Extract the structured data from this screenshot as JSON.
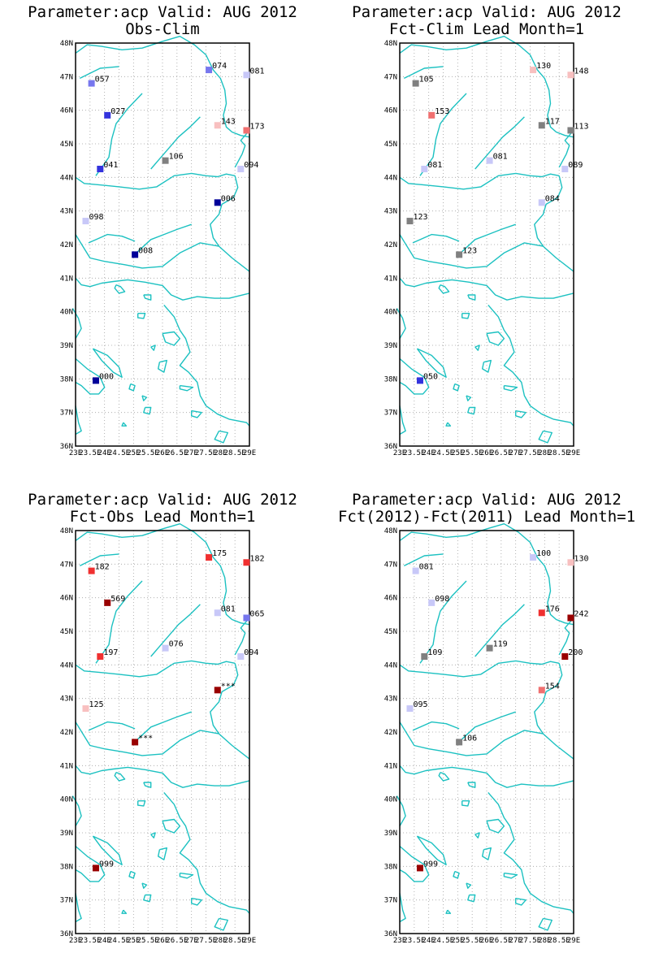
{
  "chart_data": [
    {
      "type": "scatter",
      "title_line1": "Parameter:acp Valid: AUG 2012",
      "title_line2": "Obs-Clim",
      "xlim": [
        23,
        29
      ],
      "ylim": [
        36,
        48
      ],
      "x_ticks": [
        "23E",
        "23.5E",
        "24E",
        "24.5E",
        "25E",
        "25.5E",
        "26E",
        "26.5E",
        "27E",
        "27.5E",
        "28E",
        "28.5E",
        "29E"
      ],
      "y_ticks": [
        "36N",
        "37N",
        "38N",
        "39N",
        "40N",
        "41N",
        "42N",
        "43N",
        "44N",
        "45N",
        "46N",
        "47N",
        "48N"
      ],
      "stations": [
        {
          "lon": 23.55,
          "lat": 46.8,
          "label": "057",
          "color": "#7777ee"
        },
        {
          "lon": 24.1,
          "lat": 45.85,
          "label": "027",
          "color": "#3333dd"
        },
        {
          "lon": 23.85,
          "lat": 44.25,
          "label": "041",
          "color": "#3333dd"
        },
        {
          "lon": 23.35,
          "lat": 42.7,
          "label": "098",
          "color": "#c8c8f8"
        },
        {
          "lon": 25.05,
          "lat": 41.7,
          "label": "008",
          "color": "#000099"
        },
        {
          "lon": 23.7,
          "lat": 37.95,
          "label": "000",
          "color": "#000099"
        },
        {
          "lon": 26.1,
          "lat": 44.5,
          "label": "106",
          "color": "#808080"
        },
        {
          "lon": 27.6,
          "lat": 47.2,
          "label": "074",
          "color": "#7777ee"
        },
        {
          "lon": 28.9,
          "lat": 47.05,
          "label": "081",
          "color": "#c8c8f8"
        },
        {
          "lon": 27.9,
          "lat": 45.55,
          "label": "143",
          "color": "#f8c0c0"
        },
        {
          "lon": 28.9,
          "lat": 45.4,
          "label": "173",
          "color": "#f07070"
        },
        {
          "lon": 28.7,
          "lat": 44.25,
          "label": "094",
          "color": "#c8c8f8"
        },
        {
          "lon": 27.9,
          "lat": 43.25,
          "label": "006",
          "color": "#000099"
        }
      ]
    },
    {
      "type": "scatter",
      "title_line1": "Parameter:acp Valid: AUG 2012",
      "title_line2": "Fct-Clim Lead Month=1",
      "xlim": [
        23,
        29
      ],
      "ylim": [
        36,
        48
      ],
      "x_ticks": [
        "23E",
        "23.5E",
        "24E",
        "24.5E",
        "25E",
        "25.5E",
        "26E",
        "26.5E",
        "27E",
        "27.5E",
        "28E",
        "28.5E",
        "29E"
      ],
      "y_ticks": [
        "36N",
        "37N",
        "38N",
        "39N",
        "40N",
        "41N",
        "42N",
        "43N",
        "44N",
        "45N",
        "46N",
        "47N",
        "48N"
      ],
      "stations": [
        {
          "lon": 23.55,
          "lat": 46.8,
          "label": "105",
          "color": "#808080"
        },
        {
          "lon": 24.1,
          "lat": 45.85,
          "label": "153",
          "color": "#f07070"
        },
        {
          "lon": 23.85,
          "lat": 44.25,
          "label": "081",
          "color": "#c8c8f8"
        },
        {
          "lon": 23.35,
          "lat": 42.7,
          "label": "123",
          "color": "#808080"
        },
        {
          "lon": 25.05,
          "lat": 41.7,
          "label": "123",
          "color": "#808080"
        },
        {
          "lon": 23.7,
          "lat": 37.95,
          "label": "050",
          "color": "#3333dd"
        },
        {
          "lon": 26.1,
          "lat": 44.5,
          "label": "081",
          "color": "#c8c8f8"
        },
        {
          "lon": 27.6,
          "lat": 47.2,
          "label": "130",
          "color": "#f8c0c0"
        },
        {
          "lon": 28.9,
          "lat": 47.05,
          "label": "148",
          "color": "#f8c0c0"
        },
        {
          "lon": 27.9,
          "lat": 45.55,
          "label": "117",
          "color": "#808080"
        },
        {
          "lon": 28.9,
          "lat": 45.4,
          "label": "113",
          "color": "#808080"
        },
        {
          "lon": 28.7,
          "lat": 44.25,
          "label": "089",
          "color": "#c8c8f8"
        },
        {
          "lon": 27.9,
          "lat": 43.25,
          "label": "084",
          "color": "#c8c8f8"
        }
      ]
    },
    {
      "type": "scatter",
      "title_line1": "Parameter:acp Valid: AUG 2012",
      "title_line2": "Fct-Obs Lead Month=1",
      "xlim": [
        23,
        29
      ],
      "ylim": [
        36,
        48
      ],
      "x_ticks": [
        "23E",
        "23.5E",
        "24E",
        "24.5E",
        "25E",
        "25.5E",
        "26E",
        "26.5E",
        "27E",
        "27.5E",
        "28E",
        "28.5E",
        "29E"
      ],
      "y_ticks": [
        "36N",
        "37N",
        "38N",
        "39N",
        "40N",
        "41N",
        "42N",
        "43N",
        "44N",
        "45N",
        "46N",
        "47N",
        "48N"
      ],
      "stations": [
        {
          "lon": 23.55,
          "lat": 46.8,
          "label": "182",
          "color": "#f03030"
        },
        {
          "lon": 24.1,
          "lat": 45.85,
          "label": "569",
          "color": "#990000"
        },
        {
          "lon": 23.85,
          "lat": 44.25,
          "label": "197",
          "color": "#f03030"
        },
        {
          "lon": 23.35,
          "lat": 42.7,
          "label": "125",
          "color": "#f8c0c0"
        },
        {
          "lon": 25.05,
          "lat": 41.7,
          "label": "***",
          "color": "#990000"
        },
        {
          "lon": 23.7,
          "lat": 37.95,
          "label": "999",
          "color": "#990000"
        },
        {
          "lon": 26.1,
          "lat": 44.5,
          "label": "076",
          "color": "#c8c8f8"
        },
        {
          "lon": 27.6,
          "lat": 47.2,
          "label": "175",
          "color": "#f03030"
        },
        {
          "lon": 28.9,
          "lat": 47.05,
          "label": "182",
          "color": "#f03030"
        },
        {
          "lon": 27.9,
          "lat": 45.55,
          "label": "081",
          "color": "#c8c8f8"
        },
        {
          "lon": 28.9,
          "lat": 45.4,
          "label": "065",
          "color": "#7777ee"
        },
        {
          "lon": 28.7,
          "lat": 44.25,
          "label": "094",
          "color": "#c8c8f8"
        },
        {
          "lon": 27.9,
          "lat": 43.25,
          "label": "***",
          "color": "#990000"
        }
      ]
    },
    {
      "type": "scatter",
      "title_line1": "Parameter:acp Valid: AUG 2012",
      "title_line2": "Fct(2012)-Fct(2011) Lead Month=1",
      "xlim": [
        23,
        29
      ],
      "ylim": [
        36,
        48
      ],
      "x_ticks": [
        "23E",
        "23.5E",
        "24E",
        "24.5E",
        "25E",
        "25.5E",
        "26E",
        "26.5E",
        "27E",
        "27.5E",
        "28E",
        "28.5E",
        "29E"
      ],
      "y_ticks": [
        "36N",
        "37N",
        "38N",
        "39N",
        "40N",
        "41N",
        "42N",
        "43N",
        "44N",
        "45N",
        "46N",
        "47N",
        "48N"
      ],
      "stations": [
        {
          "lon": 23.55,
          "lat": 46.8,
          "label": "081",
          "color": "#c8c8f8"
        },
        {
          "lon": 24.1,
          "lat": 45.85,
          "label": "098",
          "color": "#c8c8f8"
        },
        {
          "lon": 23.85,
          "lat": 44.25,
          "label": "109",
          "color": "#808080"
        },
        {
          "lon": 23.35,
          "lat": 42.7,
          "label": "095",
          "color": "#c8c8f8"
        },
        {
          "lon": 25.05,
          "lat": 41.7,
          "label": "106",
          "color": "#808080"
        },
        {
          "lon": 23.7,
          "lat": 37.95,
          "label": "999",
          "color": "#990000"
        },
        {
          "lon": 26.1,
          "lat": 44.5,
          "label": "119",
          "color": "#808080"
        },
        {
          "lon": 27.6,
          "lat": 47.2,
          "label": "100",
          "color": "#c8c8f8"
        },
        {
          "lon": 28.9,
          "lat": 47.05,
          "label": "130",
          "color": "#f8c0c0"
        },
        {
          "lon": 27.9,
          "lat": 45.55,
          "label": "176",
          "color": "#f03030"
        },
        {
          "lon": 28.9,
          "lat": 45.4,
          "label": "242",
          "color": "#990000"
        },
        {
          "lon": 28.7,
          "lat": 44.25,
          "label": "200",
          "color": "#990000"
        },
        {
          "lon": 27.9,
          "lat": 43.25,
          "label": "154",
          "color": "#f07070"
        }
      ]
    }
  ]
}
